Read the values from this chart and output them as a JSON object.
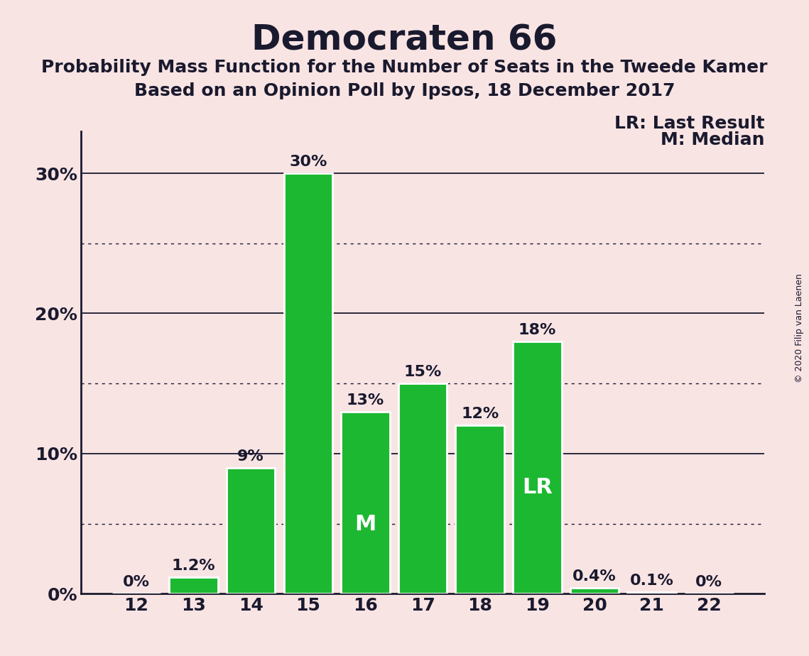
{
  "title": "Democraten 66",
  "subtitle1": "Probability Mass Function for the Number of Seats in the Tweede Kamer",
  "subtitle2": "Based on an Opinion Poll by Ipsos, 18 December 2017",
  "copyright": "© 2020 Filip van Laenen",
  "categories": [
    12,
    13,
    14,
    15,
    16,
    17,
    18,
    19,
    20,
    21,
    22
  ],
  "values": [
    0.0,
    1.2,
    9.0,
    30.0,
    13.0,
    15.0,
    12.0,
    18.0,
    0.4,
    0.1,
    0.0
  ],
  "labels": [
    "0%",
    "1.2%",
    "9%",
    "30%",
    "13%",
    "15%",
    "12%",
    "18%",
    "0.4%",
    "0.1%",
    "0%"
  ],
  "bar_color": "#1db832",
  "background_color": "#f9e4e4",
  "text_color": "#1a1a2e",
  "median_bar": 16,
  "last_result_bar": 19,
  "median_label": "M",
  "last_result_label": "LR",
  "legend_lr": "LR: Last Result",
  "legend_m": "M: Median",
  "yticks": [
    0,
    10,
    20,
    30
  ],
  "ytick_labels": [
    "0%",
    "10%",
    "20%",
    "30%"
  ],
  "ylim": [
    0,
    33
  ],
  "grid_solid": [
    10,
    20,
    30
  ],
  "grid_dotted": [
    5,
    15,
    25
  ],
  "title_fontsize": 36,
  "subtitle_fontsize": 18,
  "label_fontsize": 16,
  "tick_fontsize": 18,
  "inner_label_fontsize": 22,
  "legend_fontsize": 18,
  "copyright_fontsize": 9
}
